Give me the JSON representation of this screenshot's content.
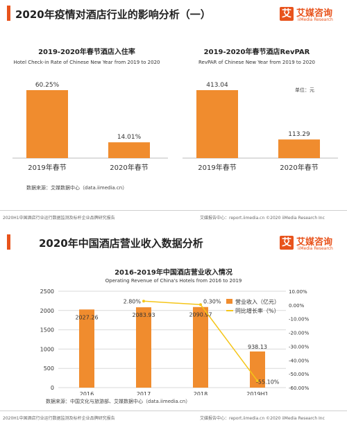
{
  "colors": {
    "accent": "#e8531c",
    "bar": "#f08c2e",
    "line": "#f5c518"
  },
  "section1": {
    "title": "2020年疫情对酒店行业的影响分析（一）",
    "logo_glyph": "艾",
    "logo_text": "艾媒咨询",
    "logo_sub": "iiMedia Research",
    "source": "数据来源：艾媒数据中心（data.iimedia.cn）",
    "footer_left": "2020H1中国酒店行业运行数据监测及标杆企业品牌研究报告",
    "footer_right": "艾媒报告中心：report.iimedia.cn  ©2020  iiMedia Research  Inc"
  },
  "section2": {
    "title": "2020年中国酒店营业收入数据分析",
    "logo_glyph": "艾",
    "logo_text": "艾媒咨询",
    "logo_sub": "iiMedia Research",
    "source": "数据来源：中国文化与旅游部、艾媒数据中心（data.iimedia.cn）",
    "footer_left": "2020H1中国酒店行业运行数据监测及标杆企业品牌研究报告",
    "footer_right": "艾媒报告中心：report.iimedia.cn  ©2020  iiMedia Research  Inc"
  },
  "chart_data": [
    {
      "type": "bar",
      "title": "2019-2020年春节酒店入住率",
      "subtitle": "Hotel Check-in Rate of Chinese New Year  from 2019 to 2020",
      "categories": [
        "2019年春节",
        "2020年春节"
      ],
      "values": [
        60.25,
        14.01
      ],
      "value_labels": [
        "60.25%",
        "14.01%"
      ],
      "grid": false
    },
    {
      "type": "bar",
      "title": "2019-2020年春节酒店RevPAR",
      "subtitle": "RevPAR of Chinese New Year from 2019 to 2020",
      "unit_label": "单位：元",
      "categories": [
        "2019年春节",
        "2020年春节"
      ],
      "values": [
        413.04,
        113.29
      ],
      "value_labels": [
        "413.04",
        "113.29"
      ],
      "grid": false
    },
    {
      "type": "bar",
      "title": "2016-2019年中国酒店营业收入情况",
      "subtitle": "Operating Revenue of China's Hotels from 2016 to 2019",
      "categories": [
        "2016",
        "2017",
        "2018",
        "2019H1"
      ],
      "series": [
        {
          "name": "营业收入（亿元）",
          "type": "bar",
          "values": [
            2027.26,
            2083.93,
            2090.97,
            938.13
          ],
          "labels": [
            "2027.26",
            "2083.93",
            "2090.97",
            "938.13"
          ]
        },
        {
          "name": "同比增长率（%）",
          "type": "line",
          "axis": "right",
          "values": [
            null,
            2.8,
            0.3,
            -55.1
          ],
          "labels": [
            "",
            "2.80%",
            "0.30%",
            "-55.10%"
          ]
        }
      ],
      "ylim": [
        0,
        2500
      ],
      "yticks": [
        "0",
        "500",
        "1000",
        "1500",
        "2000",
        "2500"
      ],
      "y2lim": [
        -60,
        10
      ],
      "y2ticks": [
        "10.00%",
        "0.00%",
        "-10.00%",
        "-20.00%",
        "-30.00%",
        "-40.00%",
        "-50.00%",
        "-60.00%"
      ],
      "legend": "top-right",
      "grid": true
    }
  ]
}
